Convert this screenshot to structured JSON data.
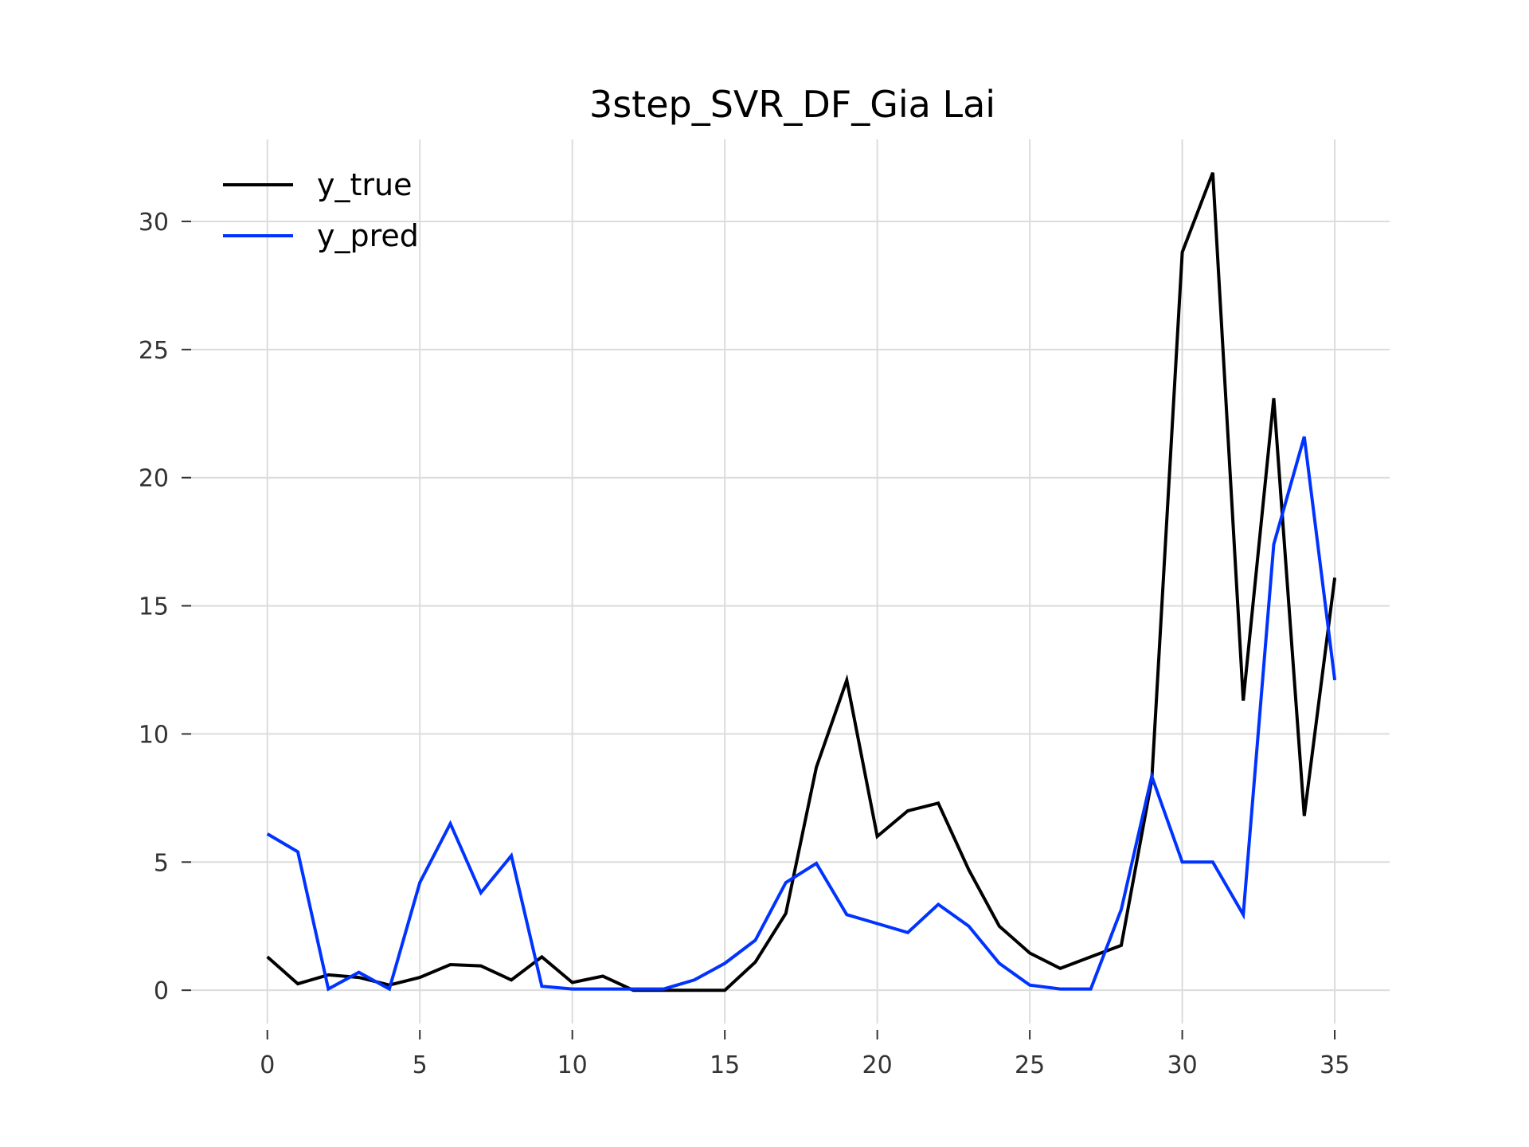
{
  "chart_data": {
    "type": "line",
    "title": "3step_SVR_DF_Gia Lai",
    "xlabel": "",
    "ylabel": "",
    "x": [
      0,
      1,
      2,
      3,
      4,
      5,
      6,
      7,
      8,
      9,
      10,
      11,
      12,
      13,
      14,
      15,
      16,
      17,
      18,
      19,
      20,
      21,
      22,
      23,
      24,
      25,
      26,
      27,
      28,
      29,
      30,
      31,
      32,
      33,
      34,
      35
    ],
    "xlim": [
      -2.5,
      36.8
    ],
    "ylim": [
      -1.3,
      33.2
    ],
    "xticks": [
      0,
      5,
      10,
      15,
      20,
      25,
      30,
      35
    ],
    "xtick_labels": [
      "0",
      "5",
      "10",
      "15",
      "20",
      "25",
      "30",
      "35"
    ],
    "yticks": [
      0,
      5,
      10,
      15,
      20,
      25,
      30
    ],
    "ytick_labels": [
      "0",
      "5",
      "10",
      "15",
      "20",
      "25",
      "30"
    ],
    "grid": true,
    "legend_position": "top-left",
    "series": [
      {
        "name": "y_true",
        "color": "#000000",
        "values": [
          1.3,
          0.25,
          0.6,
          0.5,
          0.2,
          0.5,
          1.0,
          0.95,
          0.4,
          1.3,
          0.3,
          0.55,
          0.0,
          0.0,
          0.0,
          0.0,
          1.1,
          3.0,
          8.7,
          12.1,
          6.0,
          7.0,
          7.3,
          4.7,
          2.5,
          1.45,
          0.85,
          1.3,
          1.75,
          8.2,
          28.8,
          31.9,
          11.3,
          23.1,
          6.8,
          16.1
        ]
      },
      {
        "name": "y_pred",
        "color": "#0033ff",
        "values": [
          6.1,
          5.4,
          0.05,
          0.7,
          0.05,
          4.2,
          6.5,
          3.8,
          5.25,
          0.15,
          0.05,
          0.05,
          0.05,
          0.05,
          0.4,
          1.05,
          1.95,
          4.2,
          4.95,
          2.95,
          2.6,
          2.25,
          3.35,
          2.5,
          1.05,
          0.2,
          0.05,
          0.05,
          3.15,
          8.35,
          5.0,
          5.0,
          2.95,
          17.4,
          21.6,
          12.1
        ]
      }
    ]
  }
}
